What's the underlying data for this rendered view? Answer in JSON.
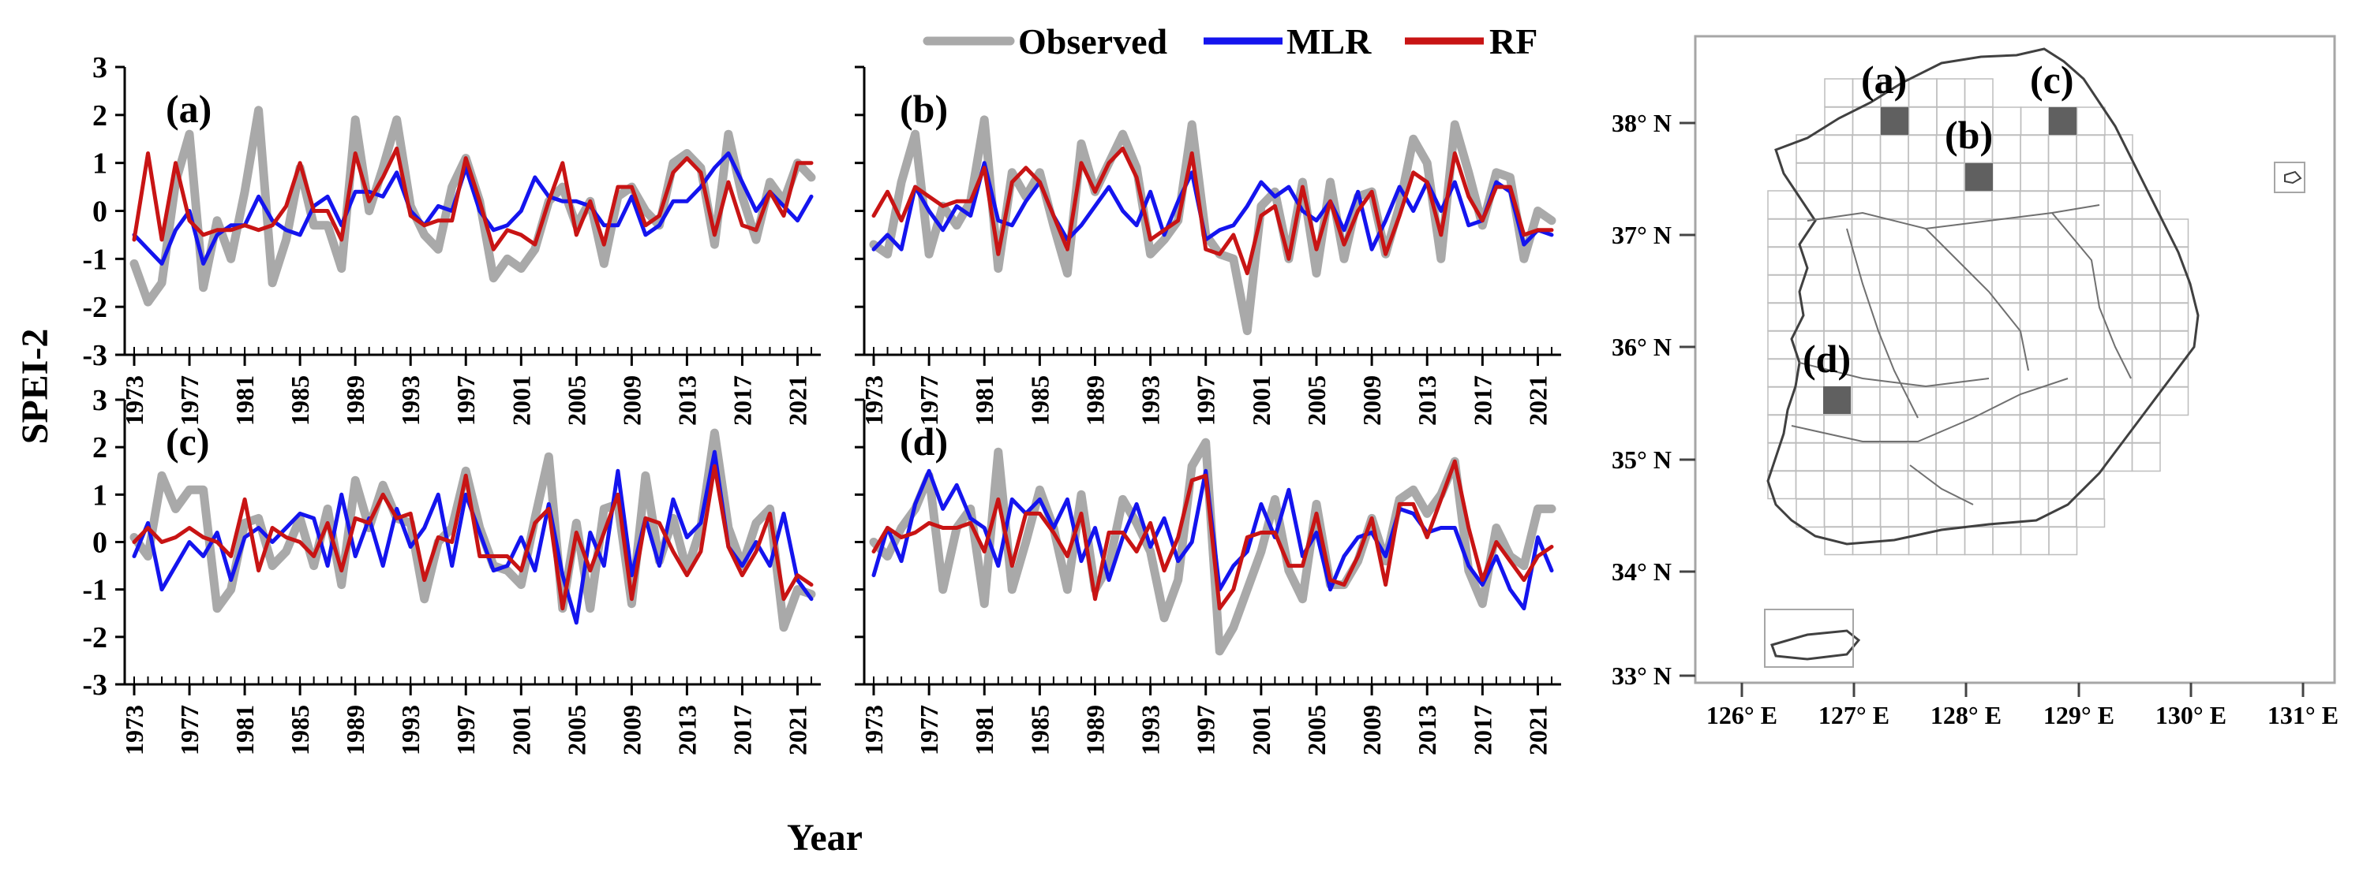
{
  "figure": {
    "ylabel": "SPEI-2",
    "xlabel": "Year"
  },
  "legend": {
    "placement": "top",
    "entries": [
      {
        "label": "Observed",
        "color": "#a9a9a9"
      },
      {
        "label": "MLR",
        "color": "#1414ee"
      },
      {
        "label": "RF",
        "color": "#c81414"
      }
    ]
  },
  "chart_data": [
    {
      "type": "line",
      "panel": "(a)",
      "x": [
        1973,
        1974,
        1975,
        1976,
        1977,
        1978,
        1979,
        1980,
        1981,
        1982,
        1983,
        1984,
        1985,
        1986,
        1987,
        1988,
        1989,
        1990,
        1991,
        1992,
        1993,
        1994,
        1995,
        1996,
        1997,
        1998,
        1999,
        2000,
        2001,
        2002,
        2003,
        2004,
        2005,
        2006,
        2007,
        2008,
        2009,
        2010,
        2011,
        2012,
        2013,
        2014,
        2015,
        2016,
        2017,
        2018,
        2019,
        2020,
        2021,
        2022
      ],
      "xticks": [
        "1973",
        "1977",
        "1981",
        "1985",
        "1989",
        "1993",
        "1997",
        "2001",
        "2005",
        "2009",
        "2013",
        "2017",
        "2021"
      ],
      "yticks": [
        "3",
        "2",
        "1",
        "0",
        "-1",
        "-2",
        "-3"
      ],
      "ylim": [
        -3,
        3
      ],
      "series": [
        {
          "name": "Observed",
          "values": [
            -1.1,
            -1.9,
            -1.5,
            0.6,
            1.6,
            -1.6,
            -0.2,
            -1.0,
            0.4,
            2.1,
            -1.5,
            -0.6,
            0.9,
            -0.3,
            -0.3,
            -1.2,
            1.9,
            0.0,
            0.9,
            1.9,
            0.1,
            -0.5,
            -0.8,
            0.5,
            1.1,
            0.2,
            -1.4,
            -1.0,
            -1.2,
            -0.8,
            0.2,
            0.5,
            -0.3,
            0.2,
            -1.1,
            0.3,
            0.5,
            0.0,
            -0.3,
            1.0,
            1.2,
            0.9,
            -0.7,
            1.6,
            0.3,
            -0.6,
            0.6,
            0.2,
            1.0,
            0.7
          ]
        },
        {
          "name": "MLR",
          "values": [
            -0.5,
            -0.8,
            -1.1,
            -0.4,
            0.0,
            -1.1,
            -0.5,
            -0.3,
            -0.3,
            0.3,
            -0.2,
            -0.4,
            -0.5,
            0.1,
            0.3,
            -0.3,
            0.4,
            0.4,
            0.3,
            0.8,
            0.0,
            -0.3,
            0.1,
            0.0,
            0.9,
            0.0,
            -0.4,
            -0.3,
            0.0,
            0.7,
            0.3,
            0.2,
            0.2,
            0.1,
            -0.3,
            -0.3,
            0.3,
            -0.5,
            -0.3,
            0.2,
            0.2,
            0.5,
            0.9,
            1.2,
            0.6,
            0.0,
            0.4,
            0.1,
            -0.2,
            0.3
          ]
        },
        {
          "name": "RF",
          "values": [
            -0.6,
            1.2,
            -0.6,
            1.0,
            -0.2,
            -0.5,
            -0.4,
            -0.4,
            -0.3,
            -0.4,
            -0.3,
            0.1,
            1.0,
            0.0,
            0.0,
            -0.6,
            1.2,
            0.2,
            0.7,
            1.3,
            -0.1,
            -0.3,
            -0.2,
            -0.2,
            1.1,
            0.2,
            -0.8,
            -0.4,
            -0.5,
            -0.7,
            0.2,
            1.0,
            -0.5,
            0.2,
            -0.7,
            0.5,
            0.5,
            -0.3,
            -0.1,
            0.8,
            1.1,
            0.8,
            -0.5,
            0.6,
            -0.3,
            -0.4,
            0.4,
            -0.1,
            1.0,
            1.0
          ]
        }
      ]
    },
    {
      "type": "line",
      "panel": "(b)",
      "x": [
        1973,
        1974,
        1975,
        1976,
        1977,
        1978,
        1979,
        1980,
        1981,
        1982,
        1983,
        1984,
        1985,
        1986,
        1987,
        1988,
        1989,
        1990,
        1991,
        1992,
        1993,
        1994,
        1995,
        1996,
        1997,
        1998,
        1999,
        2000,
        2001,
        2002,
        2003,
        2004,
        2005,
        2006,
        2007,
        2008,
        2009,
        2010,
        2011,
        2012,
        2013,
        2014,
        2015,
        2016,
        2017,
        2018,
        2019,
        2020,
        2021,
        2022
      ],
      "xticks": [
        "1973",
        "1977",
        "1981",
        "1985",
        "1989",
        "1993",
        "1997",
        "2001",
        "2005",
        "2009",
        "2013",
        "2017",
        "2021"
      ],
      "yticks": [
        "3",
        "2",
        "1",
        "0",
        "-1",
        "-2",
        "-3"
      ],
      "ylim": [
        -3,
        3
      ],
      "series": [
        {
          "name": "Observed",
          "values": [
            -0.7,
            -0.9,
            0.6,
            1.6,
            -0.9,
            0.1,
            -0.3,
            0.2,
            1.9,
            -1.2,
            0.8,
            0.3,
            0.8,
            -0.3,
            -1.3,
            1.4,
            0.4,
            1.0,
            1.6,
            0.9,
            -0.9,
            -0.6,
            -0.2,
            1.8,
            -0.5,
            -0.9,
            -1.0,
            -2.5,
            0.1,
            0.4,
            -1.0,
            0.6,
            -1.3,
            0.6,
            -1.0,
            0.3,
            0.4,
            -0.9,
            0.1,
            1.5,
            1.0,
            -1.0,
            1.8,
            0.8,
            -0.3,
            0.8,
            0.7,
            -1.0,
            0.0,
            -0.2
          ]
        },
        {
          "name": "MLR",
          "values": [
            -0.8,
            -0.5,
            -0.8,
            0.5,
            0.0,
            -0.4,
            0.1,
            -0.1,
            1.0,
            -0.2,
            -0.3,
            0.2,
            0.6,
            -0.1,
            -0.6,
            -0.3,
            0.1,
            0.5,
            0.0,
            -0.3,
            0.4,
            -0.5,
            0.2,
            0.8,
            -0.6,
            -0.4,
            -0.3,
            0.1,
            0.6,
            0.3,
            0.5,
            0.0,
            -0.2,
            0.2,
            -0.4,
            0.4,
            -0.8,
            -0.2,
            0.5,
            0.0,
            0.6,
            0.0,
            0.6,
            -0.3,
            -0.2,
            0.6,
            0.4,
            -0.7,
            -0.4,
            -0.5
          ]
        },
        {
          "name": "RF",
          "values": [
            -0.1,
            0.4,
            -0.2,
            0.5,
            0.3,
            0.1,
            0.2,
            0.2,
            0.9,
            -0.9,
            0.6,
            0.9,
            0.6,
            -0.1,
            -0.8,
            1.0,
            0.4,
            1.0,
            1.3,
            0.7,
            -0.6,
            -0.4,
            -0.2,
            1.2,
            -0.8,
            -0.9,
            -0.5,
            -1.3,
            -0.1,
            0.1,
            -1.0,
            0.5,
            -0.8,
            0.2,
            -0.7,
            0.0,
            0.4,
            -0.9,
            -0.1,
            0.8,
            0.6,
            -0.5,
            1.2,
            0.3,
            -0.2,
            0.5,
            0.5,
            -0.5,
            -0.4,
            -0.4
          ]
        }
      ]
    },
    {
      "type": "line",
      "panel": "(c)",
      "x": [
        1973,
        1974,
        1975,
        1976,
        1977,
        1978,
        1979,
        1980,
        1981,
        1982,
        1983,
        1984,
        1985,
        1986,
        1987,
        1988,
        1989,
        1990,
        1991,
        1992,
        1993,
        1994,
        1995,
        1996,
        1997,
        1998,
        1999,
        2000,
        2001,
        2002,
        2003,
        2004,
        2005,
        2006,
        2007,
        2008,
        2009,
        2010,
        2011,
        2012,
        2013,
        2014,
        2015,
        2016,
        2017,
        2018,
        2019,
        2020,
        2021,
        2022
      ],
      "xticks": [
        "1973",
        "1977",
        "1981",
        "1985",
        "1989",
        "1993",
        "1997",
        "2001",
        "2005",
        "2009",
        "2013",
        "2017",
        "2021"
      ],
      "yticks": [
        "3",
        "2",
        "1",
        "0",
        "-1",
        "-2",
        "-3"
      ],
      "ylim": [
        -3,
        3
      ],
      "series": [
        {
          "name": "Observed",
          "values": [
            0.1,
            -0.3,
            1.4,
            0.7,
            1.1,
            1.1,
            -1.4,
            -1.0,
            0.4,
            0.5,
            -0.5,
            -0.2,
            0.5,
            -0.5,
            0.7,
            -0.9,
            1.3,
            0.3,
            1.2,
            0.5,
            0.4,
            -1.2,
            0.0,
            0.3,
            1.5,
            0.3,
            -0.5,
            -0.6,
            -0.9,
            0.5,
            1.8,
            -1.4,
            0.4,
            -1.4,
            0.7,
            0.8,
            -1.3,
            1.4,
            -0.4,
            0.5,
            -0.6,
            0.3,
            2.3,
            0.3,
            -0.5,
            0.4,
            0.7,
            -1.8,
            -1.0,
            -1.1
          ]
        },
        {
          "name": "MLR",
          "values": [
            -0.3,
            0.4,
            -1.0,
            -0.5,
            0.0,
            -0.3,
            0.2,
            -0.8,
            0.1,
            0.3,
            0.0,
            0.3,
            0.6,
            0.5,
            -0.5,
            1.0,
            -0.3,
            0.5,
            -0.5,
            0.7,
            -0.1,
            0.3,
            1.0,
            -0.5,
            1.0,
            0.2,
            -0.6,
            -0.5,
            0.1,
            -0.6,
            0.8,
            -0.7,
            -1.7,
            0.2,
            -0.5,
            1.5,
            -0.7,
            0.5,
            -0.5,
            0.9,
            0.1,
            0.4,
            1.9,
            -0.1,
            -0.5,
            0.0,
            -0.5,
            0.6,
            -0.8,
            -1.2
          ]
        },
        {
          "name": "RF",
          "values": [
            0.0,
            0.3,
            0.0,
            0.1,
            0.3,
            0.1,
            0.0,
            -0.3,
            0.9,
            -0.6,
            0.3,
            0.1,
            0.0,
            -0.3,
            0.4,
            -0.6,
            0.5,
            0.4,
            1.0,
            0.5,
            0.6,
            -0.8,
            0.1,
            0.0,
            1.4,
            -0.3,
            -0.3,
            -0.3,
            -0.6,
            0.4,
            0.7,
            -1.4,
            0.2,
            -0.6,
            0.2,
            1.0,
            -1.2,
            0.5,
            0.4,
            -0.2,
            -0.7,
            -0.2,
            1.6,
            -0.1,
            -0.7,
            -0.2,
            0.6,
            -1.2,
            -0.7,
            -0.9
          ]
        }
      ]
    },
    {
      "type": "line",
      "panel": "(d)",
      "x": [
        1973,
        1974,
        1975,
        1976,
        1977,
        1978,
        1979,
        1980,
        1981,
        1982,
        1983,
        1984,
        1985,
        1986,
        1987,
        1988,
        1989,
        1990,
        1991,
        1992,
        1993,
        1994,
        1995,
        1996,
        1997,
        1998,
        1999,
        2000,
        2001,
        2002,
        2003,
        2004,
        2005,
        2006,
        2007,
        2008,
        2009,
        2010,
        2011,
        2012,
        2013,
        2014,
        2015,
        2016,
        2017,
        2018,
        2019,
        2020,
        2021,
        2022
      ],
      "xticks": [
        "1973",
        "1977",
        "1981",
        "1985",
        "1989",
        "1993",
        "1997",
        "2001",
        "2005",
        "2009",
        "2013",
        "2017",
        "2021"
      ],
      "yticks": [
        "3",
        "2",
        "1",
        "0",
        "-1",
        "-2",
        "-3"
      ],
      "ylim": [
        -3,
        3
      ],
      "series": [
        {
          "name": "Observed",
          "values": [
            0.0,
            -0.3,
            0.3,
            0.7,
            1.4,
            -1.0,
            0.3,
            0.7,
            -1.3,
            1.9,
            -1.0,
            0.0,
            1.1,
            0.3,
            -1.0,
            1.0,
            -1.0,
            -0.5,
            0.9,
            0.4,
            -0.2,
            -1.6,
            -0.8,
            1.6,
            2.1,
            -2.3,
            -1.8,
            -1.0,
            -0.2,
            0.9,
            -0.6,
            -1.2,
            0.8,
            -0.9,
            -0.9,
            -0.4,
            0.5,
            -0.4,
            0.9,
            1.1,
            0.6,
            1.0,
            1.7,
            -0.6,
            -1.3,
            0.3,
            -0.3,
            -0.5,
            0.7,
            0.7
          ]
        },
        {
          "name": "MLR",
          "values": [
            -0.7,
            0.3,
            -0.4,
            0.8,
            1.5,
            0.7,
            1.2,
            0.5,
            0.3,
            -0.5,
            0.9,
            0.6,
            0.9,
            0.3,
            0.9,
            -0.4,
            0.3,
            -0.8,
            0.1,
            0.8,
            -0.1,
            0.5,
            -0.4,
            0.0,
            1.5,
            -1.0,
            -0.5,
            -0.2,
            0.8,
            0.1,
            1.1,
            -0.3,
            0.2,
            -1.0,
            -0.3,
            0.1,
            0.2,
            -0.3,
            0.7,
            0.6,
            0.2,
            0.3,
            0.3,
            -0.5,
            -0.9,
            -0.3,
            -1.0,
            -1.4,
            0.1,
            -0.6
          ]
        },
        {
          "name": "RF",
          "values": [
            -0.2,
            0.3,
            0.1,
            0.2,
            0.4,
            0.3,
            0.3,
            0.4,
            -0.2,
            0.9,
            -0.5,
            0.6,
            0.6,
            0.2,
            -0.3,
            0.6,
            -1.2,
            0.2,
            0.2,
            -0.2,
            0.4,
            -0.6,
            0.1,
            1.3,
            1.4,
            -1.4,
            -1.0,
            0.1,
            0.2,
            0.2,
            -0.5,
            -0.5,
            0.6,
            -0.8,
            -0.9,
            -0.3,
            0.5,
            -0.9,
            0.8,
            0.8,
            0.1,
            0.9,
            1.7,
            0.3,
            -0.8,
            0.0,
            -0.4,
            -0.8,
            -0.3,
            -0.1
          ]
        }
      ]
    }
  ],
  "map": {
    "lat_labels": [
      "38° N",
      "37° N",
      "36° N",
      "35° N",
      "34° N",
      "33° N"
    ],
    "lon_labels": [
      "126° E",
      "127° E",
      "128° E",
      "129° E",
      "130° E",
      "131° E"
    ],
    "sites": [
      {
        "label": "(a)"
      },
      {
        "label": "(b)"
      },
      {
        "label": "(c)"
      },
      {
        "label": "(d)"
      }
    ],
    "site_color": "#606060"
  }
}
